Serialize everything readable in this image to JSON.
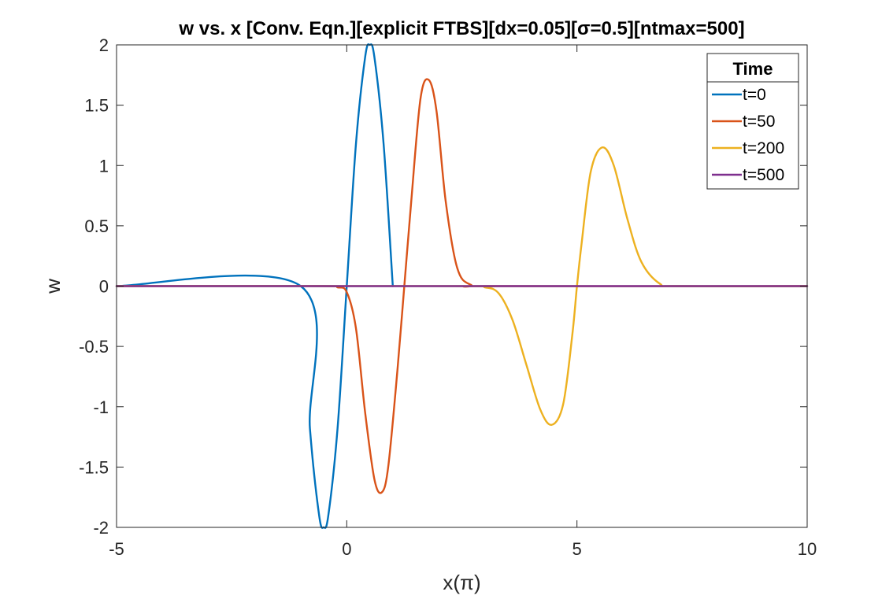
{
  "chart_data": {
    "type": "line",
    "title": "w vs. x [Conv. Eqn.][explicit FTBS][dx=0.05][σ=0.5][ntmax=500]",
    "xlabel": "x(π)",
    "ylabel": "w",
    "xlim": [
      -5,
      10
    ],
    "ylim": [
      -2,
      2
    ],
    "xticks": [
      -5,
      0,
      5,
      10
    ],
    "xtick_labels": [
      "-5",
      "0",
      "5",
      "10"
    ],
    "yticks": [
      -2,
      -1.5,
      -1,
      -0.5,
      0,
      0.5,
      1,
      1.5,
      2
    ],
    "ytick_labels": [
      "-2",
      "-1.5",
      "-1",
      "-0.5",
      "0",
      "0.5",
      "1",
      "1.5",
      "2"
    ],
    "grid": false,
    "box": true,
    "legend": {
      "title": "Time",
      "position": "top-right"
    },
    "series": [
      {
        "name": "t=0",
        "color": "#0072BD",
        "x": [
          -5,
          -1,
          -0.8,
          -0.6,
          -0.5,
          -0.4,
          -0.2,
          0,
          0.2,
          0.4,
          0.5,
          0.6,
          0.8,
          1.0
        ],
        "y": [
          0,
          0,
          -1.18,
          -1.9,
          -2.0,
          -1.9,
          -1.18,
          0,
          1.18,
          1.9,
          2.0,
          1.9,
          1.18,
          0
        ]
      },
      {
        "name": "t=50",
        "color": "#D95319",
        "x": [
          -5,
          -0.5,
          -0.2,
          0,
          0.2,
          0.4,
          0.6,
          0.76,
          0.9,
          1.1,
          1.25,
          1.4,
          1.6,
          1.78,
          1.95,
          2.15,
          2.4,
          2.7,
          3.2,
          10
        ],
        "y": [
          0,
          0,
          -0.01,
          -0.05,
          -0.35,
          -1.05,
          -1.6,
          -1.71,
          -1.5,
          -0.7,
          0,
          0.7,
          1.55,
          1.71,
          1.45,
          0.7,
          0.15,
          0.01,
          0,
          0
        ]
      },
      {
        "name": "t=200",
        "color": "#EDB120",
        "x": [
          -5,
          2.5,
          3.0,
          3.3,
          3.6,
          3.9,
          4.2,
          4.45,
          4.7,
          4.9,
          5.0,
          5.1,
          5.3,
          5.55,
          5.8,
          6.1,
          6.4,
          6.8,
          7.2,
          10
        ],
        "y": [
          0,
          0,
          -0.01,
          -0.06,
          -0.28,
          -0.65,
          -1.02,
          -1.15,
          -0.98,
          -0.4,
          0,
          0.35,
          0.95,
          1.15,
          1.0,
          0.55,
          0.2,
          0.02,
          0,
          0
        ]
      },
      {
        "name": "t=500",
        "color": "#7E2F8E",
        "x": [
          -5,
          10
        ],
        "y": [
          0,
          0
        ]
      }
    ]
  }
}
